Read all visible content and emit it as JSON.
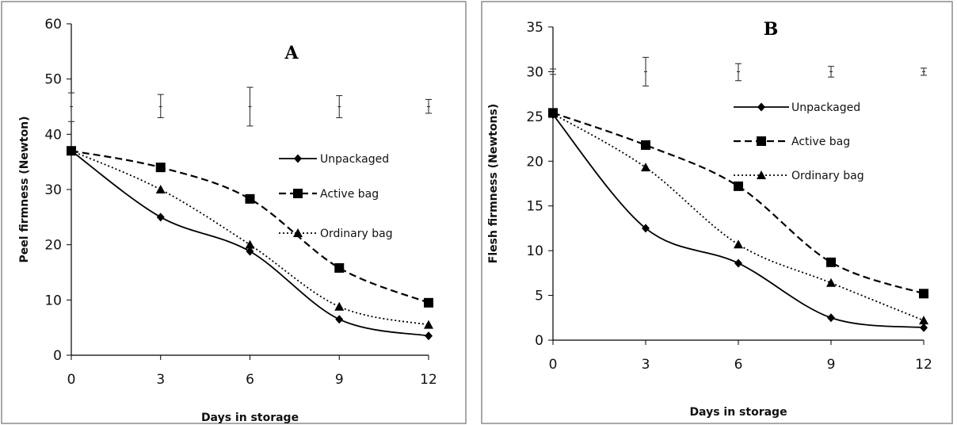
{
  "chart_data": [
    {
      "type": "line",
      "panel_label": "A",
      "xlabel": "Days in storage",
      "ylabel": "Peel firmness (Newton)",
      "x": [
        0,
        3,
        6,
        9,
        12
      ],
      "x_ticks": [
        "0",
        "3",
        "6",
        "9",
        "12"
      ],
      "ylim": [
        0,
        60
      ],
      "y_ticks": [
        "0",
        "10",
        "20",
        "30",
        "40",
        "50",
        "60"
      ],
      "grid": false,
      "legend_position": "right",
      "series": [
        {
          "name": "Unpackaged",
          "marker": "diamond",
          "line": "solid",
          "values": [
            37,
            25,
            18.8,
            6.5,
            3.5
          ]
        },
        {
          "name": "Active bag",
          "marker": "square",
          "line": "dashed",
          "values": [
            37,
            34,
            28.3,
            15.8,
            9.5
          ]
        },
        {
          "name": "Ordinary bag",
          "marker": "triangle",
          "line": "dotted",
          "values": [
            37,
            30,
            20,
            8.8,
            5.5
          ]
        }
      ],
      "error_bars": [
        {
          "x": 0,
          "center": 45,
          "low": 42.3,
          "high": 47.5
        },
        {
          "x": 3,
          "center": 45,
          "low": 43,
          "high": 47.2
        },
        {
          "x": 6,
          "center": 45,
          "low": 41.5,
          "high": 48.5
        },
        {
          "x": 9,
          "center": 45,
          "low": 43,
          "high": 47
        },
        {
          "x": 12,
          "center": 45,
          "low": 43.8,
          "high": 46.3
        }
      ]
    },
    {
      "type": "line",
      "panel_label": "B",
      "xlabel": "Days in storage",
      "ylabel": "Flesh firmness (Newtons)",
      "x": [
        0,
        3,
        6,
        9,
        12
      ],
      "x_ticks": [
        "0",
        "3",
        "6",
        "9",
        "12"
      ],
      "ylim": [
        0,
        35
      ],
      "y_ticks": [
        "0",
        "5",
        "10",
        "15",
        "20",
        "25",
        "30",
        "35"
      ],
      "grid": false,
      "legend_position": "right",
      "series": [
        {
          "name": "Unpackaged",
          "marker": "diamond",
          "line": "solid",
          "values": [
            25.2,
            12.5,
            8.6,
            2.5,
            1.4
          ]
        },
        {
          "name": "Active bag",
          "marker": "square",
          "line": "dashed",
          "values": [
            25.4,
            21.8,
            17.2,
            8.7,
            5.2
          ]
        },
        {
          "name": "Ordinary bag",
          "marker": "triangle",
          "line": "dotted",
          "values": [
            25.3,
            19.3,
            10.7,
            6.4,
            2.2
          ]
        }
      ],
      "error_bars": [
        {
          "x": 0,
          "center": 30,
          "low": 29.7,
          "high": 30.3
        },
        {
          "x": 3,
          "center": 30,
          "low": 28.4,
          "high": 31.6
        },
        {
          "x": 6,
          "center": 30,
          "low": 29,
          "high": 30.9
        },
        {
          "x": 9,
          "center": 30,
          "low": 29.4,
          "high": 30.6
        },
        {
          "x": 12,
          "center": 30,
          "low": 29.6,
          "high": 30.4
        }
      ]
    }
  ]
}
